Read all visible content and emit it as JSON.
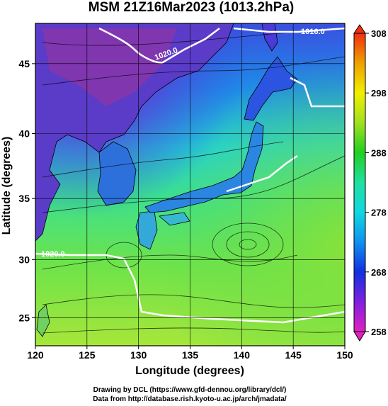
{
  "map": {
    "title": "MSM 21Z16Mar2023 (1013.2hPa)",
    "x_label": "Longitude (degrees)",
    "y_label": "Latitude  (degrees)",
    "xlim": [
      120,
      150
    ],
    "ylim": [
      22.5,
      47.7
    ],
    "xticks": [
      120,
      125,
      130,
      135,
      140,
      145,
      150
    ],
    "yticks": [
      25,
      30,
      35,
      40,
      45
    ],
    "colorbar": {
      "lim": [
        258,
        308
      ],
      "ticks": [
        258,
        268,
        278,
        288,
        298,
        308
      ]
    },
    "contour_labels": [
      "1016.0",
      "1020.0",
      "1020.0"
    ],
    "credits": [
      "Drawing by DCL (https://www.gfd-dennou.org/library/dcl/)",
      "Data from http://database.rish.kyoto-u.ac.jp/arch/jmadata/"
    ]
  }
}
